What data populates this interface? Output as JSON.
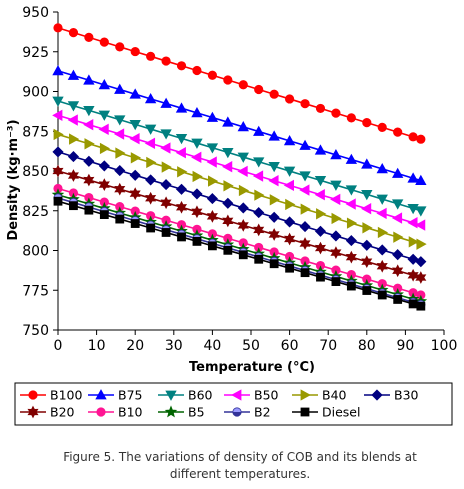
{
  "chart_data": {
    "type": "line",
    "title": "",
    "xlabel": "Temperature (°C)",
    "ylabel": "Density (kg·m⁻³)",
    "xlim": [
      0,
      100
    ],
    "ylim": [
      750,
      950
    ],
    "x_ticks": [
      0,
      10,
      20,
      30,
      40,
      50,
      60,
      70,
      80,
      90,
      100
    ],
    "y_ticks": [
      750,
      775,
      800,
      825,
      850,
      875,
      900,
      925,
      950
    ],
    "x": [
      0,
      4,
      8,
      12,
      16,
      20,
      24,
      28,
      32,
      36,
      40,
      44,
      48,
      52,
      56,
      60,
      64,
      68,
      72,
      76,
      80,
      84,
      88,
      92,
      94
    ],
    "grid": false,
    "legend_position": "bottom",
    "series": [
      {
        "name": "B100",
        "color": "#ff0000",
        "marker": "circle",
        "start": 940,
        "end": 870
      },
      {
        "name": "B75",
        "color": "#0000ff",
        "marker": "triangle-up",
        "start": 913,
        "end": 844
      },
      {
        "name": "B60",
        "color": "#008080",
        "marker": "triangle-down",
        "start": 894,
        "end": 825
      },
      {
        "name": "B50",
        "color": "#ff00ff",
        "marker": "triangle-left",
        "start": 885,
        "end": 816
      },
      {
        "name": "B40",
        "color": "#999900",
        "marker": "triangle-right",
        "start": 873,
        "end": 804
      },
      {
        "name": "B30",
        "color": "#000080",
        "marker": "diamond",
        "start": 862,
        "end": 793
      },
      {
        "name": "B20",
        "color": "#800000",
        "marker": "star",
        "start": 850,
        "end": 783
      },
      {
        "name": "B10",
        "color": "#ff1493",
        "marker": "circle",
        "start": 839,
        "end": 772
      },
      {
        "name": "B5",
        "color": "#006400",
        "marker": "star5",
        "start": 835,
        "end": 768
      },
      {
        "name": "B2",
        "color": "#333399",
        "marker": "circle-half",
        "start": 833,
        "end": 766
      },
      {
        "name": "Diesel",
        "color": "#000000",
        "marker": "square",
        "start": 831,
        "end": 765
      }
    ]
  },
  "caption": {
    "label": "Figure 5.",
    "text": "The variations of density of COB and its blends at different temperatures."
  }
}
